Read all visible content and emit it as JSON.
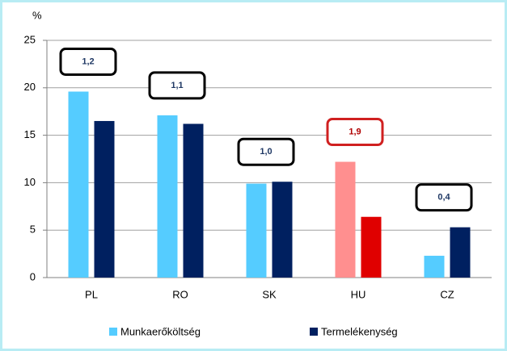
{
  "chart_data": {
    "type": "bar",
    "y_unit_label": "%",
    "categories": [
      "PL",
      "RO",
      "SK",
      "HU",
      "CZ"
    ],
    "series": [
      {
        "name": "Munkaerőköltség",
        "color": "#55ccff",
        "point_colors": [
          "#55ccff",
          "#55ccff",
          "#55ccff",
          "#ff8f8f",
          "#55ccff"
        ],
        "values": [
          19.6,
          17.1,
          9.9,
          12.2,
          2.3
        ]
      },
      {
        "name": "Termelékenység",
        "color": "#002060",
        "point_colors": [
          "#002060",
          "#002060",
          "#002060",
          "#e00000",
          "#002060"
        ],
        "values": [
          16.5,
          16.2,
          10.1,
          6.4,
          5.3
        ]
      }
    ],
    "box_labels": [
      "1,2",
      "1,1",
      "1,0",
      "1,9",
      "0,4"
    ],
    "box_label_colors": [
      "#000000",
      "#000000",
      "#000000",
      "#d02020",
      "#000000"
    ],
    "ylim": [
      0,
      25
    ],
    "yticks": [
      0,
      5,
      10,
      15,
      20,
      25
    ],
    "grid": true
  }
}
